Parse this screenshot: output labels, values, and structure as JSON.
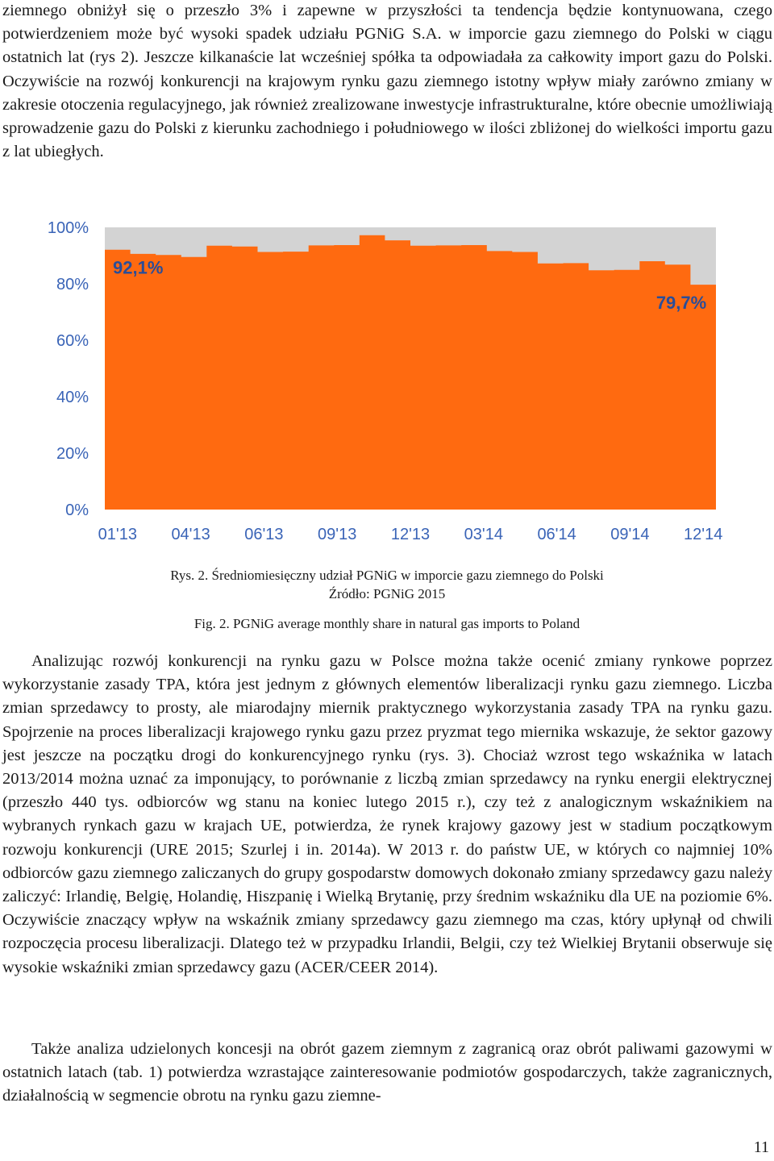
{
  "text": {
    "p1": "ziemnego obniżył się o przeszło 3% i zapewne w przyszłości ta tendencja będzie kontynuowana, czego potwierdzeniem może być wysoki spadek udziału PGNiG S.A. w imporcie gazu ziemnego do Polski w ciągu ostatnich lat (rys 2). Jeszcze kilkanaście lat wcześniej spółka ta odpowiadała za całkowity import gazu do Polski. Oczywiście na rozwój konkurencji na krajowym rynku gazu ziemnego istotny wpływ miały zarówno zmiany w zakresie otoczenia regulacyjnego, jak również zrealizowane inwestycje infrastrukturalne, które obecnie umożliwiają sprowadzenie gazu do Polski z kierunku zachodniego i południowego w ilości zbliżonej do wielkości importu gazu z lat ubiegłych.",
    "p2": "Analizując rozwój konkurencji na rynku gazu w Polsce można także ocenić zmiany rynkowe poprzez wykorzystanie zasady TPA, która jest jednym z głównych elementów liberalizacji rynku gazu ziemnego. Liczba zmian sprzedawcy to prosty, ale miarodajny miernik praktycznego wykorzystania zasady TPA na rynku gazu. Spojrzenie na proces liberalizacji krajowego rynku gazu przez pryzmat tego miernika wskazuje, że sektor gazowy jest jeszcze na początku drogi do konkurencyjnego rynku (rys. 3). Chociaż wzrost tego wskaźnika w latach 2013/2014 można uznać za imponujący, to porównanie z liczbą zmian sprzedawcy na rynku energii elektrycznej (przeszło 440 tys. odbiorców wg stanu na koniec lutego 2015 r.), czy też z analogicznym wskaźnikiem na wybranych rynkach gazu w krajach UE, potwierdza, że rynek krajowy gazowy jest w stadium początkowym rozwoju konkurencji (URE 2015; Szurlej i in. 2014a). W 2013 r. do państw UE, w których co najmniej 10% odbiorców gazu ziemnego zaliczanych do grupy gospodarstw domowych dokonało zmiany sprzedawcy gazu należy zaliczyć: Irlandię, Belgię, Holandię, Hiszpanię i Wielką Brytanię, przy średnim wskaźniku dla UE na poziomie 6%. Oczywiście znaczący wpływ na wskaźnik zmiany sprzedawcy gazu ziemnego ma czas, który upłynął od chwili rozpoczęcia procesu liberalizacji. Dlatego też w przypadku Irlandii, Belgii, czy też Wielkiej Brytanii obserwuje się wysokie wskaźniki zmian sprzedawcy gazu (ACER/CEER 2014).",
    "p3": "Także analiza udzielonych koncesji na obrót gazem ziemnym z zagranicą oraz obrót paliwami gazowymi w ostatnich latach (tab. 1) potwierdza wzrastające zainteresowanie podmiotów gospodarczych, także zagranicznych, działalnością w segmencie obrotu na rynku gazu ziemne-"
  },
  "captions": {
    "rys": "Rys. 2. Średniomiesięczny udział PGNiG w imporcie gazu ziemnego do Polski",
    "source": "Źródło: PGNiG 2015",
    "fig": "Fig. 2. PGNiG average monthly share in natural gas imports to Poland"
  },
  "page_number": "11",
  "chart_data": {
    "type": "area",
    "x_tick_labels": [
      "01'13",
      "04'13",
      "06'13",
      "09'13",
      "12'13",
      "03'14",
      "06'14",
      "09'14",
      "12'14"
    ],
    "y_tick_labels": [
      "0%",
      "20%",
      "40%",
      "60%",
      "80%",
      "100%"
    ],
    "ylim": [
      0,
      100
    ],
    "months": [
      "01'13",
      "02'13",
      "03'13",
      "04'13",
      "05'13",
      "06'13",
      "07'13",
      "08'13",
      "09'13",
      "10'13",
      "11'13",
      "12'13",
      "01'14",
      "02'14",
      "03'14",
      "04'14",
      "05'14",
      "06'14",
      "07'14",
      "08'14",
      "09'14",
      "10'14",
      "11'14",
      "12'14"
    ],
    "values": [
      92.1,
      90.6,
      90.2,
      89.5,
      93.5,
      93.2,
      91.3,
      91.4,
      93.6,
      93.7,
      97.2,
      95.4,
      93.5,
      93.6,
      93.7,
      91.6,
      91.3,
      87.2,
      87.3,
      84.8,
      84.9,
      88.0,
      86.8,
      79.7
    ],
    "annotations": [
      {
        "text": "92,1%",
        "month": "01'13",
        "value": 92.1
      },
      {
        "text": "79,7%",
        "month": "12'14",
        "value": 79.7
      }
    ],
    "colors": {
      "fill": "#ff6a10",
      "background": "#d3d3d3",
      "ticks": "#3a64b7",
      "annotation": "#2a4d98"
    }
  }
}
